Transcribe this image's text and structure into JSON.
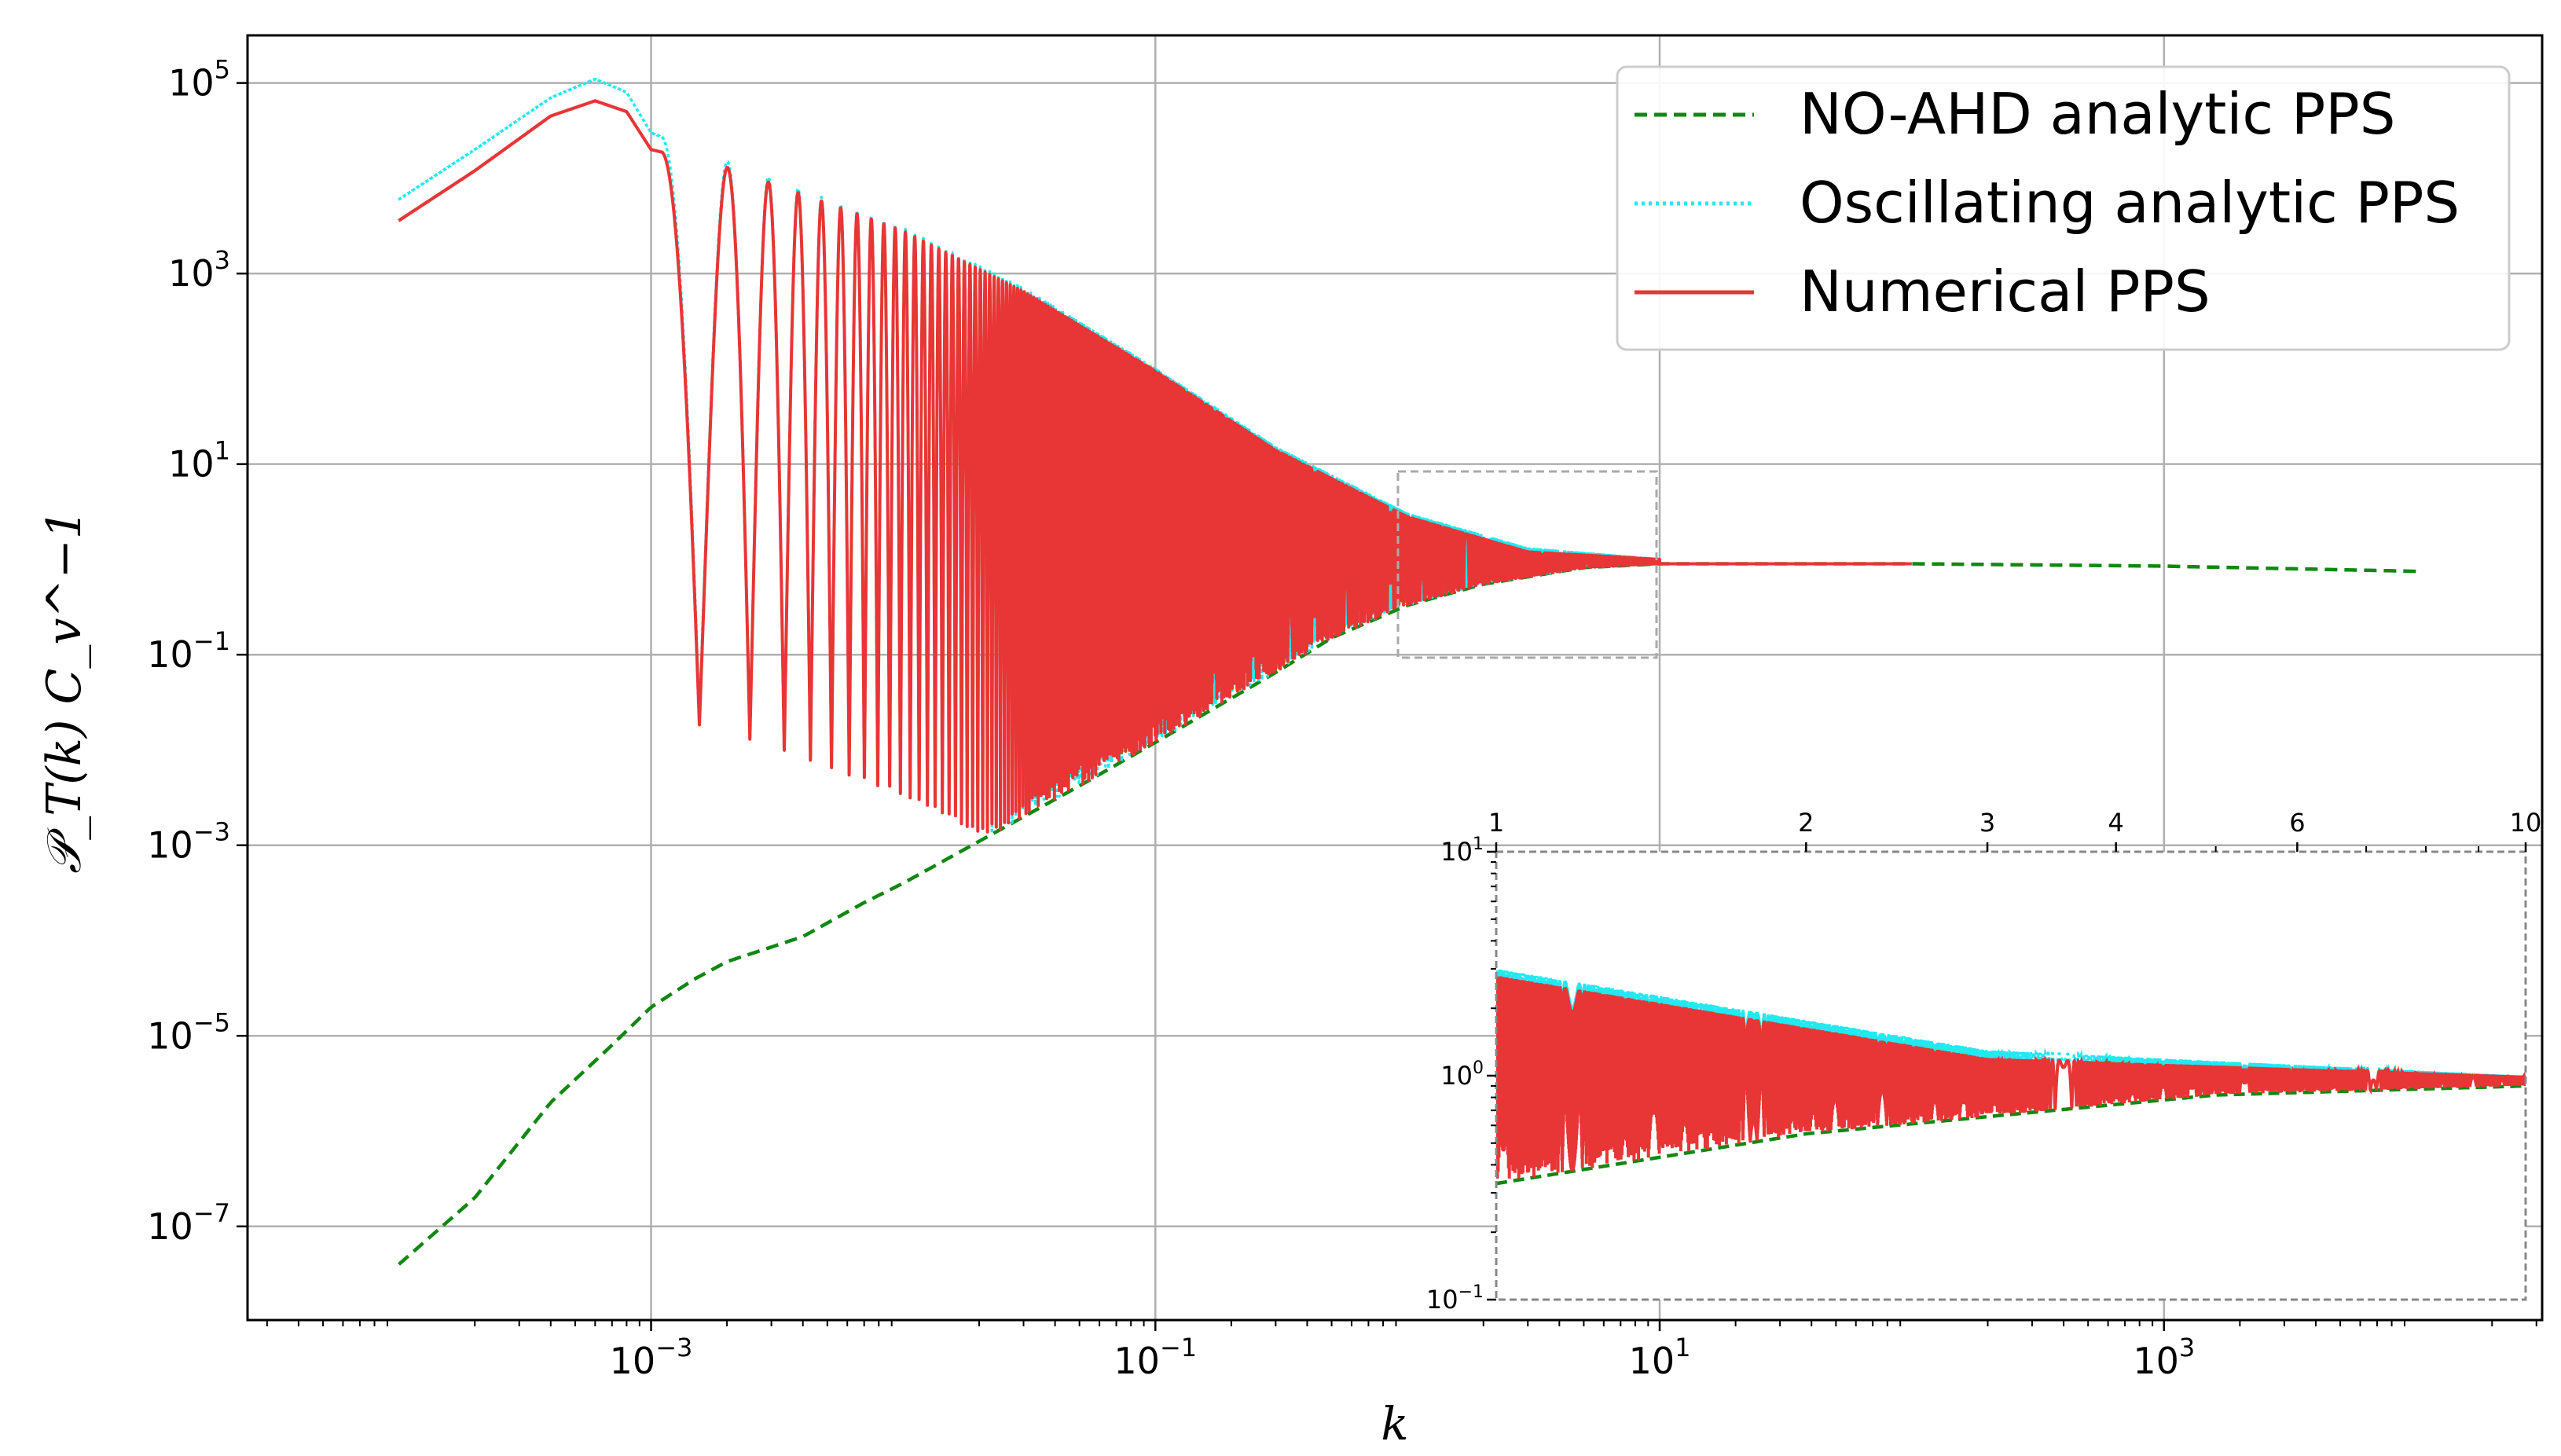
{
  "chart_data": {
    "type": "line",
    "xlabel": "k",
    "ylabel": "𝒫_T(k)  C_v^−1",
    "xscale": "log",
    "yscale": "log",
    "xlim": [
      2.51e-05,
      31600
    ],
    "ylim": [
      1.04e-08,
      316000
    ],
    "grid": true,
    "x_ticks": [
      {
        "value": 0.001,
        "base": "10",
        "exp": "−3"
      },
      {
        "value": 0.1,
        "base": "10",
        "exp": "−1"
      },
      {
        "value": 10,
        "base": "10",
        "exp": "1"
      },
      {
        "value": 1000,
        "base": "10",
        "exp": "3"
      }
    ],
    "y_ticks": [
      {
        "value": 100000,
        "base": "10",
        "exp": "5"
      },
      {
        "value": 1000,
        "base": "10",
        "exp": "3"
      },
      {
        "value": 10,
        "base": "10",
        "exp": "1"
      },
      {
        "value": 0.1,
        "base": "10",
        "exp": "−1"
      },
      {
        "value": 0.001,
        "base": "10",
        "exp": "−3"
      },
      {
        "value": 1e-05,
        "base": "10",
        "exp": "−5"
      },
      {
        "value": 1e-07,
        "base": "10",
        "exp": "−7"
      }
    ],
    "legend": {
      "position": "top-right",
      "entries": [
        {
          "label": "NO-AHD analytic PPS",
          "color": "#118811",
          "style": "dashed"
        },
        {
          "label": "Oscillating analytic PPS",
          "color": "#22e8f0",
          "style": "dotted"
        },
        {
          "label": "Numerical PPS",
          "color": "#e83535",
          "style": "solid"
        }
      ]
    },
    "series": [
      {
        "name": "NO-AHD analytic PPS",
        "x": [
          0.0001,
          0.0002,
          0.0004,
          0.0007,
          0.001,
          0.0015,
          0.002,
          0.004,
          0.007,
          0.01,
          0.02,
          0.05,
          0.1,
          0.3,
          0.5,
          1,
          2,
          5,
          10,
          100,
          1000,
          10000
        ],
        "y": [
          4e-08,
          2e-07,
          2e-06,
          8e-06,
          2e-05,
          4e-05,
          6e-05,
          0.00011,
          0.00025,
          0.0004,
          0.0011,
          0.0042,
          0.012,
          0.065,
          0.15,
          0.33,
          0.55,
          0.82,
          0.9,
          0.9,
          0.85,
          0.75
        ]
      },
      {
        "name": "Oscillating analytic PPS",
        "x": [
          0.0001,
          0.0002,
          0.0004,
          0.0006,
          0.0008,
          0.001,
          0.002,
          0.005,
          0.01,
          0.03,
          0.1,
          0.3,
          1,
          3,
          10
        ],
        "y": [
          6000,
          20000,
          70000,
          110000,
          80000,
          30000,
          15000,
          6000,
          3000,
          700,
          100,
          15,
          3,
          1.3,
          1
        ]
      },
      {
        "name": "Numerical PPS",
        "x": [
          0.0001,
          0.0002,
          0.0004,
          0.0006,
          0.0008,
          0.001,
          0.002,
          0.005,
          0.01,
          0.03,
          0.1,
          0.3,
          1,
          3,
          10,
          100
        ],
        "y": [
          3600,
          12000,
          45000,
          65000,
          50000,
          20000,
          13000,
          5500,
          2800,
          650,
          95,
          14,
          2.8,
          1.2,
          1,
          0.95
        ]
      }
    ],
    "inset": {
      "xscale": "log",
      "yscale": "log",
      "xlim": [
        1,
        10
      ],
      "ylim": [
        0.1,
        10
      ],
      "x_ticks": [
        "1",
        "2",
        "3",
        "4",
        "6",
        "10"
      ],
      "y_ticks": [
        {
          "value": 10,
          "base": "10",
          "exp": "1"
        },
        {
          "value": 1,
          "base": "10",
          "exp": "0"
        },
        {
          "value": 0.1,
          "base": "10",
          "exp": "−1"
        }
      ]
    }
  }
}
